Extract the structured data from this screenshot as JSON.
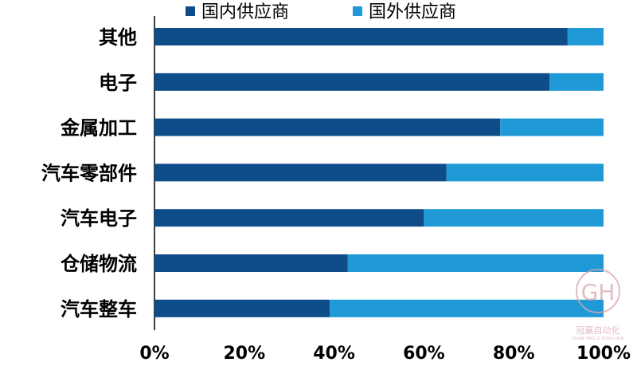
{
  "chart_data": {
    "type": "bar",
    "orientation": "horizontal",
    "stacked": true,
    "normalized": true,
    "categories": [
      "其他",
      "电子",
      "金属加工",
      "汽车零部件",
      "汽车电子",
      "仓储物流",
      "汽车整车"
    ],
    "series": [
      {
        "name": "国内供应商",
        "color": "#0f4c8a",
        "values": [
          92,
          88,
          77,
          65,
          60,
          43,
          39
        ]
      },
      {
        "name": "国外供应商",
        "color": "#1f9ad6",
        "values": [
          8,
          12,
          23,
          35,
          40,
          57,
          61
        ]
      }
    ],
    "xticks": [
      "0%",
      "20%",
      "40%",
      "60%",
      "80%",
      "100%"
    ],
    "xlim": [
      0,
      100
    ],
    "legend_position": "top",
    "grid": false
  },
  "watermark": {
    "text": "冠赢自动化",
    "subtext": "GUAN YING ZI DONG HUA",
    "monogram": "GH"
  }
}
